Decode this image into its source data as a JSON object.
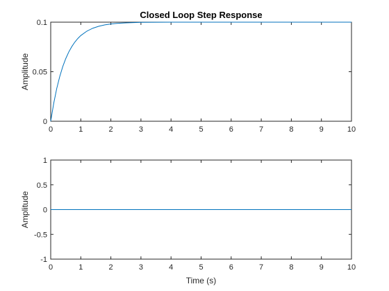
{
  "chart_data": [
    {
      "type": "line",
      "title": "Closed Loop Step Response",
      "xlabel": "",
      "ylabel": "Amplitude",
      "xlim": [
        0,
        10
      ],
      "ylim": [
        0,
        0.1
      ],
      "xticks": [
        "0",
        "1",
        "2",
        "3",
        "4",
        "5",
        "6",
        "7",
        "8",
        "9",
        "10"
      ],
      "yticks": [
        "0",
        "0.05",
        "0.1"
      ],
      "grid": false,
      "color": "#0072BD",
      "series": [
        {
          "x": [
            0,
            0.1,
            0.2,
            0.3,
            0.4,
            0.5,
            0.6,
            0.7,
            0.8,
            0.9,
            1.0,
            1.2,
            1.4,
            1.6,
            1.8,
            2.0,
            2.2,
            2.5,
            3.0,
            3.5,
            4.0,
            5.0,
            6.0,
            7.0,
            8.0,
            9.0,
            10.0
          ],
          "y": [
            0,
            0.0181,
            0.033,
            0.0451,
            0.0551,
            0.0632,
            0.0699,
            0.0753,
            0.0798,
            0.0835,
            0.0865,
            0.0909,
            0.0939,
            0.0959,
            0.0973,
            0.0982,
            0.0988,
            0.0993,
            0.0998,
            0.0999,
            0.1,
            0.1,
            0.1,
            0.1,
            0.1,
            0.1,
            0.1
          ]
        }
      ]
    },
    {
      "type": "line",
      "title": "",
      "xlabel": "Time (s)",
      "ylabel": "Amplitude",
      "xlim": [
        0,
        10
      ],
      "ylim": [
        -1,
        1
      ],
      "xticks": [
        "0",
        "1",
        "2",
        "3",
        "4",
        "5",
        "6",
        "7",
        "8",
        "9",
        "10"
      ],
      "yticks": [
        "-1",
        "-0.5",
        "0",
        "0.5",
        "1"
      ],
      "grid": false,
      "color": "#0072BD",
      "series": [
        {
          "x": [
            0,
            10
          ],
          "y": [
            0,
            0
          ]
        }
      ]
    }
  ]
}
